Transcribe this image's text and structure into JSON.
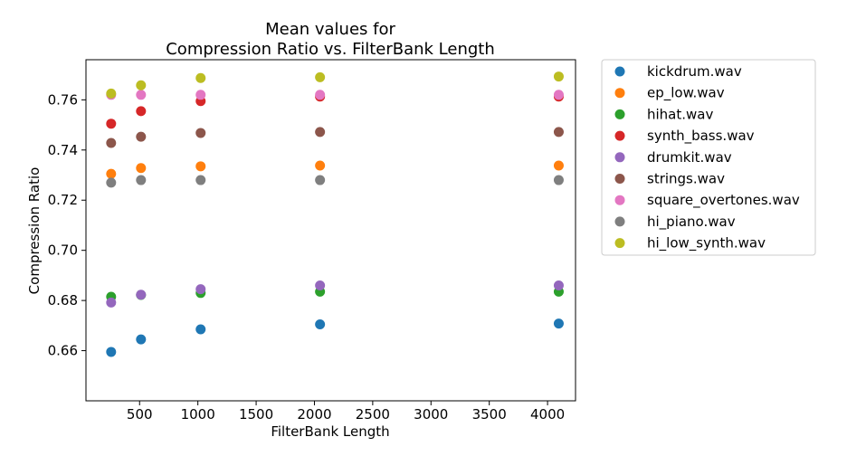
{
  "chart_data": {
    "type": "scatter",
    "title_lines": [
      "Mean values for",
      "Compression Ratio vs. FilterBank Length"
    ],
    "xlabel": "FilterBank Length",
    "ylabel": "Compression Ratio",
    "xlim": [
      40,
      4240
    ],
    "ylim": [
      0.64,
      0.776
    ],
    "xticks": [
      500,
      1000,
      1500,
      2000,
      2500,
      3000,
      3500,
      4000
    ],
    "yticks": [
      0.66,
      0.68,
      0.7,
      0.72,
      0.74,
      0.76
    ],
    "ytick_labels": [
      "0.66",
      "0.68",
      "0.70",
      "0.72",
      "0.74",
      "0.76"
    ],
    "grid": false,
    "legend_placement": "outside-right",
    "x": [
      256,
      512,
      1024,
      2048,
      4096
    ],
    "series": [
      {
        "name": "kickdrum.wav",
        "color": "#1f77b4",
        "values": [
          0.6595,
          0.6645,
          0.6685,
          0.6705,
          0.6708
        ]
      },
      {
        "name": "ep_low.wav",
        "color": "#ff7f0e",
        "values": [
          0.7305,
          0.7328,
          0.7335,
          0.7338,
          0.7338
        ]
      },
      {
        "name": "hihat.wav",
        "color": "#2ca02c",
        "values": [
          0.6815,
          0.6822,
          0.683,
          0.6835,
          0.6835
        ]
      },
      {
        "name": "synth_bass.wav",
        "color": "#d62728",
        "values": [
          0.7505,
          0.7555,
          0.7595,
          0.7613,
          0.7613
        ]
      },
      {
        "name": "drumkit.wav",
        "color": "#9467bd",
        "values": [
          0.6792,
          0.6823,
          0.6845,
          0.686,
          0.686
        ]
      },
      {
        "name": "strings.wav",
        "color": "#8c564b",
        "values": [
          0.7428,
          0.7453,
          0.7468,
          0.7472,
          0.7472
        ]
      },
      {
        "name": "square_overtones.wav",
        "color": "#e377c2",
        "values": [
          0.762,
          0.762,
          0.762,
          0.762,
          0.762
        ]
      },
      {
        "name": "hi_piano.wav",
        "color": "#7f7f7f",
        "values": [
          0.727,
          0.728,
          0.728,
          0.728,
          0.728
        ]
      },
      {
        "name": "hi_low_synth.wav",
        "color": "#bcbd22",
        "values": [
          0.7625,
          0.7658,
          0.7687,
          0.769,
          0.7693
        ]
      }
    ]
  }
}
